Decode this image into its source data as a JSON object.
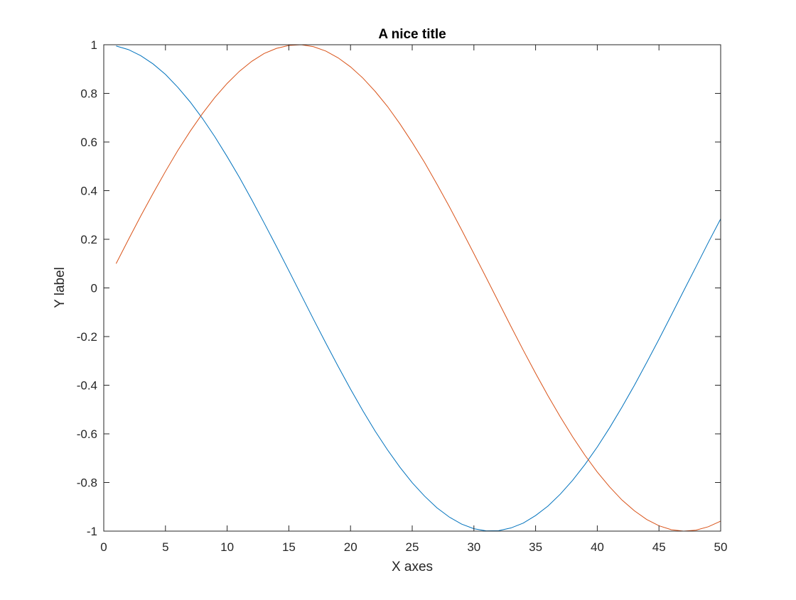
{
  "chart_data": {
    "type": "line",
    "title": "A nice title",
    "xlabel": "X axes",
    "ylabel": "Y label",
    "xlim": [
      0,
      50
    ],
    "ylim": [
      -1,
      1
    ],
    "xticks": [
      0,
      5,
      10,
      15,
      20,
      25,
      30,
      35,
      40,
      45,
      50
    ],
    "yticks": [
      -1,
      -0.8,
      -0.6,
      -0.4,
      -0.2,
      0,
      0.2,
      0.4,
      0.6,
      0.8,
      1
    ],
    "grid": false,
    "box": true,
    "legend": false,
    "series": [
      {
        "color": "#0072BD",
        "x": [
          1,
          2,
          3,
          4,
          5,
          6,
          7,
          8,
          9,
          10,
          11,
          12,
          13,
          14,
          15,
          16,
          17,
          18,
          19,
          20,
          21,
          22,
          23,
          24,
          25,
          26,
          27,
          28,
          29,
          30,
          31,
          32,
          33,
          34,
          35,
          36,
          37,
          38,
          39,
          40,
          41,
          42,
          43,
          44,
          45,
          46,
          47,
          48,
          49,
          50
        ],
        "y": [
          0.995,
          0.98,
          0.955,
          0.921,
          0.878,
          0.825,
          0.765,
          0.697,
          0.622,
          0.54,
          0.454,
          0.362,
          0.267,
          0.17,
          0.071,
          -0.029,
          -0.129,
          -0.227,
          -0.323,
          -0.416,
          -0.505,
          -0.589,
          -0.666,
          -0.737,
          -0.801,
          -0.856,
          -0.904,
          -0.942,
          -0.971,
          -0.99,
          -0.999,
          -0.998,
          -0.987,
          -0.967,
          -0.936,
          -0.897,
          -0.848,
          -0.791,
          -0.726,
          -0.654,
          -0.575,
          -0.49,
          -0.401,
          -0.307,
          -0.211,
          -0.112,
          -0.012,
          0.087,
          0.187,
          0.284
        ]
      },
      {
        "color": "#D95319",
        "x": [
          1,
          2,
          3,
          4,
          5,
          6,
          7,
          8,
          9,
          10,
          11,
          12,
          13,
          14,
          15,
          16,
          17,
          18,
          19,
          20,
          21,
          22,
          23,
          24,
          25,
          26,
          27,
          28,
          29,
          30,
          31,
          32,
          33,
          34,
          35,
          36,
          37,
          38,
          39,
          40,
          41,
          42,
          43,
          44,
          45,
          46,
          47,
          48,
          49,
          50
        ],
        "y": [
          0.1,
          0.199,
          0.296,
          0.389,
          0.479,
          0.565,
          0.644,
          0.717,
          0.783,
          0.841,
          0.891,
          0.932,
          0.964,
          0.985,
          0.997,
          1.0,
          0.992,
          0.974,
          0.946,
          0.909,
          0.863,
          0.808,
          0.746,
          0.675,
          0.598,
          0.516,
          0.427,
          0.335,
          0.239,
          0.141,
          0.042,
          -0.058,
          -0.158,
          -0.256,
          -0.351,
          -0.443,
          -0.53,
          -0.612,
          -0.688,
          -0.757,
          -0.818,
          -0.872,
          -0.916,
          -0.952,
          -0.978,
          -0.994,
          -1.0,
          -0.996,
          -0.982,
          -0.959
        ]
      }
    ]
  }
}
